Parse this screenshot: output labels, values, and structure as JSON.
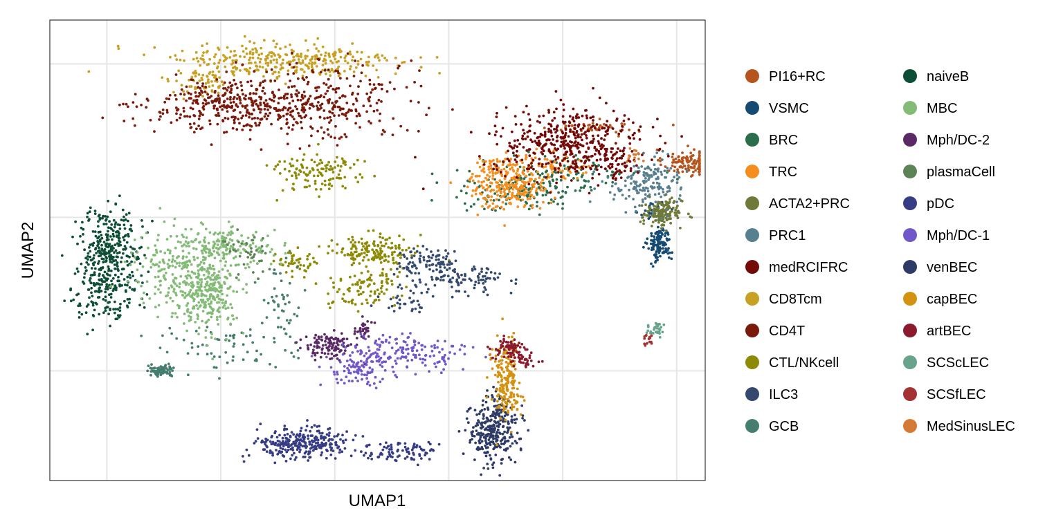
{
  "chart_data": {
    "type": "scatter",
    "title": "",
    "xlabel": "UMAP1",
    "ylabel": "UMAP2",
    "xlim": [
      -6,
      17
    ],
    "ylim": [
      -12,
      9
    ],
    "x_gridlines": [
      -4,
      0,
      4,
      8,
      12,
      16
    ],
    "y_gridlines": [
      -7,
      0,
      7
    ],
    "grid": true,
    "tick_labels": false,
    "legend": "right, two columns",
    "series": [
      {
        "name": "PI16+RC",
        "color": "#B5541C",
        "clusters": [
          {
            "x": 16.4,
            "y": 2.5,
            "sx": 0.45,
            "sy": 0.3,
            "n": 120
          },
          {
            "x": 13.3,
            "y": 4.1,
            "sx": 0.8,
            "sy": 0.15,
            "n": 40
          }
        ]
      },
      {
        "name": "VSMC",
        "color": "#154B73",
        "clusters": [
          {
            "x": 15.4,
            "y": -1.2,
            "sx": 0.2,
            "sy": 0.4,
            "n": 120
          },
          {
            "x": 15.2,
            "y": 0.3,
            "sx": 0.25,
            "sy": 0.2,
            "n": 25
          }
        ]
      },
      {
        "name": "BRC",
        "color": "#2A6E4C",
        "clusters": [
          {
            "x": 10.5,
            "y": 1.2,
            "sx": 1.2,
            "sy": 0.5,
            "n": 140
          },
          {
            "x": 12.5,
            "y": 2.1,
            "sx": 1.2,
            "sy": 0.4,
            "n": 80
          }
        ]
      },
      {
        "name": "TRC",
        "color": "#F68E1F",
        "clusters": [
          {
            "x": 10.1,
            "y": 1.6,
            "sx": 0.7,
            "sy": 0.6,
            "n": 280
          },
          {
            "x": 11.8,
            "y": 2.3,
            "sx": 0.6,
            "sy": 0.3,
            "n": 50
          }
        ]
      },
      {
        "name": "ACTA2+PRC",
        "color": "#707A38",
        "clusters": [
          {
            "x": 15.5,
            "y": 0.2,
            "sx": 0.35,
            "sy": 0.3,
            "n": 150
          }
        ]
      },
      {
        "name": "PRC1",
        "color": "#567F8F",
        "clusters": [
          {
            "x": 15.2,
            "y": 1.6,
            "sx": 0.45,
            "sy": 0.6,
            "n": 120
          },
          {
            "x": 14.2,
            "y": 1.4,
            "sx": 0.5,
            "sy": 0.4,
            "n": 40
          }
        ]
      },
      {
        "name": "medRCIFRC",
        "color": "#730A08",
        "clusters": [
          {
            "x": 12.2,
            "y": 3.4,
            "sx": 1.3,
            "sy": 0.75,
            "n": 430
          },
          {
            "x": 13.8,
            "y": 2.5,
            "sx": 0.5,
            "sy": 0.4,
            "n": 60
          }
        ]
      },
      {
        "name": "CD8Tcm",
        "color": "#C8A023",
        "clusters": [
          {
            "x": 2.1,
            "y": 7.1,
            "sx": 2.1,
            "sy": 0.45,
            "n": 330
          },
          {
            "x": -0.6,
            "y": 6.1,
            "sx": 0.5,
            "sy": 0.3,
            "n": 60
          }
        ]
      },
      {
        "name": "CD4T",
        "color": "#7A1A0C",
        "clusters": [
          {
            "x": 0.4,
            "y": 5.1,
            "sx": 1.5,
            "sy": 0.55,
            "n": 330
          },
          {
            "x": 3.4,
            "y": 5.3,
            "sx": 1.5,
            "sy": 0.9,
            "n": 300
          }
        ]
      },
      {
        "name": "CTL/NKcell",
        "color": "#8D8A06",
        "clusters": [
          {
            "x": 3.3,
            "y": 2.1,
            "sx": 0.8,
            "sy": 0.45,
            "n": 120
          },
          {
            "x": 5.4,
            "y": -1.5,
            "sx": 0.7,
            "sy": 0.35,
            "n": 150
          },
          {
            "x": 5.0,
            "y": -3.2,
            "sx": 0.6,
            "sy": 0.5,
            "n": 100
          },
          {
            "x": 2.6,
            "y": -2.1,
            "sx": 0.35,
            "sy": 0.3,
            "n": 50
          }
        ]
      },
      {
        "name": "ILC3",
        "color": "#34496D",
        "clusters": [
          {
            "x": 7.2,
            "y": -2.0,
            "sx": 0.6,
            "sy": 0.3,
            "n": 90
          },
          {
            "x": 8.7,
            "y": -2.8,
            "sx": 0.7,
            "sy": 0.3,
            "n": 90
          },
          {
            "x": 6.6,
            "y": -3.7,
            "sx": 0.45,
            "sy": 0.35,
            "n": 40
          }
        ]
      },
      {
        "name": "GCB",
        "color": "#457D6E",
        "clusters": [
          {
            "x": -2.1,
            "y": -7.0,
            "sx": 0.25,
            "sy": 0.12,
            "n": 80
          },
          {
            "x": 0.3,
            "y": -5.9,
            "sx": 1.1,
            "sy": 0.6,
            "n": 60
          },
          {
            "x": 2.2,
            "y": -4.2,
            "sx": 0.4,
            "sy": 0.9,
            "n": 50
          }
        ]
      },
      {
        "name": "naiveB",
        "color": "#0E4E36",
        "clusters": [
          {
            "x": -4.0,
            "y": -2.6,
            "sx": 0.55,
            "sy": 1.0,
            "n": 300
          },
          {
            "x": -3.8,
            "y": -0.8,
            "sx": 0.6,
            "sy": 0.6,
            "n": 150
          }
        ]
      },
      {
        "name": "MBC",
        "color": "#83BB77",
        "clusters": [
          {
            "x": -0.5,
            "y": -3.4,
            "sx": 0.55,
            "sy": 0.9,
            "n": 280
          },
          {
            "x": -1.6,
            "y": -2.4,
            "sx": 0.8,
            "sy": 0.9,
            "n": 200
          },
          {
            "x": 0.4,
            "y": -1.3,
            "sx": 0.8,
            "sy": 0.45,
            "n": 150
          }
        ]
      },
      {
        "name": "Mph/DC-2",
        "color": "#5B2A66",
        "clusters": [
          {
            "x": 3.8,
            "y": -5.9,
            "sx": 0.4,
            "sy": 0.3,
            "n": 120
          },
          {
            "x": 5.0,
            "y": -5.1,
            "sx": 0.2,
            "sy": 0.2,
            "n": 30
          }
        ]
      },
      {
        "name": "plasmaCell",
        "color": "#5D8456",
        "clusters": [
          {
            "x": 1.0,
            "y": -1.6,
            "sx": 0.5,
            "sy": 0.5,
            "n": 40
          }
        ]
      },
      {
        "name": "pDC",
        "color": "#373D84",
        "clusters": [
          {
            "x": 2.9,
            "y": -10.3,
            "sx": 0.8,
            "sy": 0.35,
            "n": 280
          },
          {
            "x": 6.3,
            "y": -10.7,
            "sx": 0.7,
            "sy": 0.25,
            "n": 90
          }
        ]
      },
      {
        "name": "Mph/DC-1",
        "color": "#7257C8",
        "clusters": [
          {
            "x": 6.5,
            "y": -6.1,
            "sx": 1.0,
            "sy": 0.4,
            "n": 150
          },
          {
            "x": 4.9,
            "y": -6.9,
            "sx": 0.7,
            "sy": 0.4,
            "n": 100
          }
        ]
      },
      {
        "name": "venBEC",
        "color": "#2E3B66",
        "clusters": [
          {
            "x": 9.5,
            "y": -9.9,
            "sx": 0.45,
            "sy": 0.7,
            "n": 260
          },
          {
            "x": 9.8,
            "y": -8.6,
            "sx": 0.3,
            "sy": 0.4,
            "n": 40
          }
        ]
      },
      {
        "name": "capBEC",
        "color": "#D49212",
        "clusters": [
          {
            "x": 10.0,
            "y": -7.5,
            "sx": 0.25,
            "sy": 0.9,
            "n": 200
          }
        ]
      },
      {
        "name": "artBEC",
        "color": "#8B1A2F",
        "clusters": [
          {
            "x": 10.1,
            "y": -6.0,
            "sx": 0.25,
            "sy": 0.3,
            "n": 70
          },
          {
            "x": 10.7,
            "y": -6.5,
            "sx": 0.2,
            "sy": 0.2,
            "n": 30
          }
        ]
      },
      {
        "name": "SCScLEC",
        "color": "#67A48B",
        "clusters": [
          {
            "x": 15.3,
            "y": -5.1,
            "sx": 0.2,
            "sy": 0.15,
            "n": 30
          }
        ]
      },
      {
        "name": "SCSfLEC",
        "color": "#A43234",
        "clusters": [
          {
            "x": 15.0,
            "y": -5.6,
            "sx": 0.12,
            "sy": 0.2,
            "n": 15
          }
        ]
      },
      {
        "name": "MedSinusLEC",
        "color": "#D47A35",
        "clusters": [
          {
            "x": 14.5,
            "y": 2.8,
            "sx": 0.2,
            "sy": 0.2,
            "n": 15
          }
        ]
      }
    ]
  }
}
